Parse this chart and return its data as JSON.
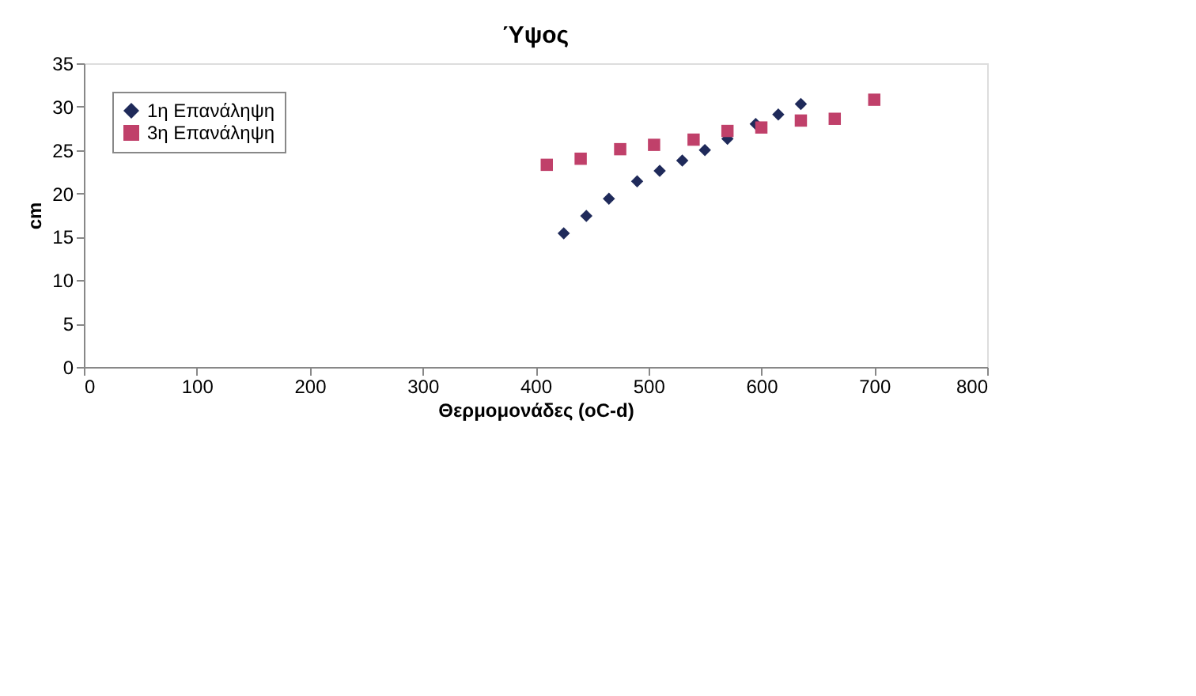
{
  "chart_data": {
    "type": "scatter",
    "title": "Ύψος",
    "xlabel": "Θερμομονάδες (oC-d)",
    "ylabel": "cm",
    "xlim": [
      0,
      800
    ],
    "xticks": [
      0,
      100,
      200,
      300,
      400,
      500,
      600,
      700,
      800
    ],
    "ylim": [
      0,
      35
    ],
    "yticks": [
      0,
      5,
      10,
      15,
      20,
      25,
      30,
      35
    ],
    "grid": false,
    "legend": "top left",
    "series": [
      {
        "name": "1η Επανάληψη",
        "color": "#1f2a5a",
        "marker": "diamond",
        "x": [
          425,
          445,
          465,
          490,
          510,
          530,
          550,
          570,
          595,
          615,
          635
        ],
        "values": [
          15.4,
          17.4,
          19.4,
          21.4,
          22.6,
          23.8,
          25,
          26.3,
          28,
          29.1,
          30.3
        ]
      },
      {
        "name": "3η Επανάληψη",
        "color": "#c0406a",
        "marker": "square",
        "x": [
          410,
          440,
          475,
          505,
          540,
          570,
          600,
          635,
          665,
          700
        ],
        "values": [
          23.3,
          24,
          25.1,
          25.6,
          26.2,
          27.2,
          27.6,
          28.4,
          28.6,
          30.8
        ]
      }
    ]
  }
}
